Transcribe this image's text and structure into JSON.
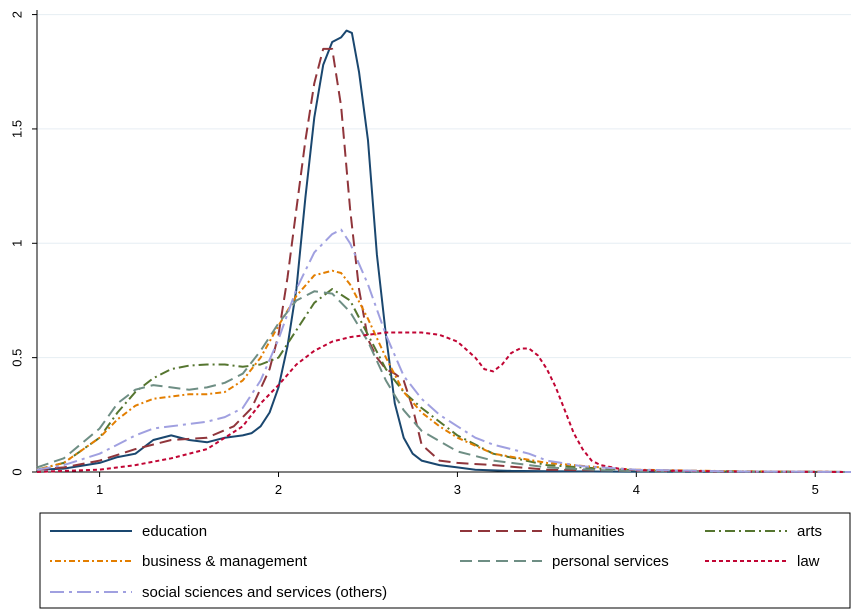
{
  "chart_data": {
    "type": "line",
    "title": "",
    "xlabel": "",
    "ylabel": "",
    "xlim": [
      0.65,
      5.2
    ],
    "ylim": [
      0,
      2.02
    ],
    "xticks": [
      1,
      2,
      3,
      4,
      5
    ],
    "xtick_labels": [
      "1",
      "2",
      "3",
      "4",
      "5"
    ],
    "yticks": [
      0,
      0.5,
      1,
      1.5,
      2
    ],
    "ytick_labels": [
      "0",
      "0.5",
      "1",
      "1.5",
      "2"
    ],
    "grid": "horizontal",
    "legend_position": "bottom",
    "series": [
      {
        "name": "education",
        "color": "#1a476f",
        "dash": "solid",
        "x": [
          0.65,
          0.8,
          1.0,
          1.1,
          1.2,
          1.3,
          1.4,
          1.5,
          1.6,
          1.7,
          1.8,
          1.85,
          1.9,
          1.95,
          2.0,
          2.05,
          2.1,
          2.15,
          2.2,
          2.25,
          2.3,
          2.35,
          2.38,
          2.41,
          2.45,
          2.5,
          2.55,
          2.6,
          2.65,
          2.7,
          2.75,
          2.8,
          2.9,
          3.0,
          3.1,
          3.3,
          3.5,
          4.0,
          5.2
        ],
        "y": [
          0.01,
          0.015,
          0.04,
          0.065,
          0.08,
          0.14,
          0.16,
          0.14,
          0.13,
          0.15,
          0.16,
          0.17,
          0.2,
          0.26,
          0.37,
          0.55,
          0.8,
          1.2,
          1.55,
          1.78,
          1.88,
          1.9,
          1.93,
          1.92,
          1.75,
          1.45,
          0.95,
          0.6,
          0.3,
          0.15,
          0.08,
          0.05,
          0.03,
          0.02,
          0.01,
          0.005,
          0.003,
          0.001,
          0.0
        ]
      },
      {
        "name": "humanities",
        "color": "#90353b",
        "dash": "long-dash",
        "x": [
          0.65,
          0.8,
          1.0,
          1.2,
          1.4,
          1.6,
          1.75,
          1.85,
          1.95,
          2.0,
          2.05,
          2.1,
          2.15,
          2.2,
          2.25,
          2.3,
          2.35,
          2.4,
          2.45,
          2.5,
          2.55,
          2.6,
          2.65,
          2.7,
          2.75,
          2.8,
          2.9,
          3.0,
          3.2,
          3.5,
          4.0,
          5.2
        ],
        "y": [
          0.01,
          0.02,
          0.05,
          0.1,
          0.14,
          0.15,
          0.2,
          0.28,
          0.45,
          0.6,
          0.85,
          1.15,
          1.45,
          1.7,
          1.85,
          1.85,
          1.6,
          1.15,
          0.8,
          0.58,
          0.5,
          0.45,
          0.43,
          0.4,
          0.28,
          0.12,
          0.05,
          0.04,
          0.03,
          0.01,
          0.005,
          0.0
        ]
      },
      {
        "name": "arts",
        "color": "#55752f",
        "dash": "dash-dot",
        "x": [
          0.65,
          0.8,
          1.0,
          1.1,
          1.2,
          1.3,
          1.4,
          1.5,
          1.6,
          1.7,
          1.8,
          1.9,
          2.0,
          2.1,
          2.2,
          2.3,
          2.4,
          2.5,
          2.6,
          2.7,
          2.8,
          3.0,
          3.2,
          3.5,
          3.8,
          4.0,
          4.5,
          5.2
        ],
        "y": [
          0.01,
          0.04,
          0.15,
          0.26,
          0.35,
          0.41,
          0.45,
          0.465,
          0.47,
          0.47,
          0.46,
          0.47,
          0.5,
          0.62,
          0.74,
          0.8,
          0.75,
          0.6,
          0.45,
          0.35,
          0.28,
          0.16,
          0.08,
          0.03,
          0.015,
          0.008,
          0.003,
          0.0
        ]
      },
      {
        "name": "business & management",
        "color": "#e37e00",
        "dash": "dot-dash",
        "x": [
          0.65,
          0.8,
          1.0,
          1.1,
          1.2,
          1.3,
          1.4,
          1.5,
          1.6,
          1.7,
          1.8,
          1.9,
          2.0,
          2.1,
          2.2,
          2.3,
          2.35,
          2.4,
          2.5,
          2.6,
          2.7,
          2.8,
          2.9,
          3.0,
          3.2,
          3.5,
          3.8,
          4.0,
          4.5,
          5.2
        ],
        "y": [
          0.01,
          0.04,
          0.15,
          0.23,
          0.29,
          0.32,
          0.33,
          0.34,
          0.34,
          0.35,
          0.4,
          0.5,
          0.64,
          0.77,
          0.86,
          0.88,
          0.87,
          0.82,
          0.67,
          0.5,
          0.35,
          0.26,
          0.2,
          0.15,
          0.08,
          0.04,
          0.02,
          0.01,
          0.004,
          0.0
        ]
      },
      {
        "name": "personal services",
        "color": "#6e8e84",
        "dash": "long-dash",
        "x": [
          0.65,
          0.8,
          1.0,
          1.1,
          1.2,
          1.3,
          1.4,
          1.5,
          1.6,
          1.7,
          1.8,
          1.9,
          2.0,
          2.1,
          2.2,
          2.3,
          2.4,
          2.5,
          2.6,
          2.7,
          2.8,
          3.0,
          3.2,
          3.5,
          3.8,
          4.0,
          4.5,
          5.2
        ],
        "y": [
          0.02,
          0.06,
          0.19,
          0.3,
          0.36,
          0.38,
          0.37,
          0.36,
          0.37,
          0.39,
          0.43,
          0.53,
          0.65,
          0.75,
          0.79,
          0.78,
          0.7,
          0.57,
          0.4,
          0.27,
          0.18,
          0.09,
          0.05,
          0.02,
          0.008,
          0.004,
          0.001,
          0.0
        ]
      },
      {
        "name": "law",
        "color": "#c10534",
        "dash": "short-dash",
        "x": [
          0.65,
          0.8,
          1.0,
          1.2,
          1.4,
          1.6,
          1.8,
          1.9,
          2.0,
          2.1,
          2.2,
          2.3,
          2.4,
          2.5,
          2.6,
          2.7,
          2.8,
          2.9,
          3.0,
          3.1,
          3.15,
          3.2,
          3.25,
          3.3,
          3.35,
          3.4,
          3.45,
          3.5,
          3.55,
          3.6,
          3.65,
          3.7,
          3.75,
          3.8,
          3.9,
          4.0,
          4.5,
          5.2
        ],
        "y": [
          0.0,
          0.005,
          0.01,
          0.03,
          0.06,
          0.1,
          0.2,
          0.3,
          0.38,
          0.47,
          0.53,
          0.57,
          0.59,
          0.6,
          0.61,
          0.61,
          0.61,
          0.6,
          0.57,
          0.5,
          0.45,
          0.44,
          0.47,
          0.52,
          0.54,
          0.54,
          0.51,
          0.45,
          0.37,
          0.27,
          0.17,
          0.1,
          0.05,
          0.03,
          0.015,
          0.008,
          0.002,
          0.0
        ]
      },
      {
        "name": "social sciences and services (others)",
        "color": "#a0a0e0",
        "dash": "long-dash-dot",
        "x": [
          0.65,
          0.8,
          1.0,
          1.1,
          1.2,
          1.3,
          1.4,
          1.5,
          1.6,
          1.7,
          1.8,
          1.9,
          2.0,
          2.1,
          2.2,
          2.3,
          2.35,
          2.4,
          2.5,
          2.6,
          2.7,
          2.8,
          2.9,
          3.0,
          3.1,
          3.2,
          3.3,
          3.4,
          3.5,
          3.7,
          4.0,
          4.5,
          5.2
        ],
        "y": [
          0.01,
          0.03,
          0.08,
          0.12,
          0.16,
          0.19,
          0.2,
          0.21,
          0.22,
          0.24,
          0.28,
          0.4,
          0.58,
          0.8,
          0.96,
          1.04,
          1.06,
          1.0,
          0.82,
          0.6,
          0.42,
          0.32,
          0.25,
          0.2,
          0.15,
          0.12,
          0.1,
          0.08,
          0.05,
          0.025,
          0.01,
          0.003,
          0.0
        ]
      }
    ]
  }
}
